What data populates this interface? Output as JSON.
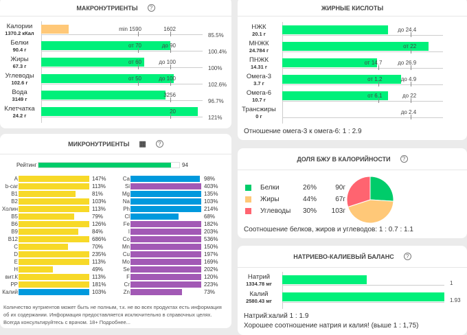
{
  "colors": {
    "green": "#00f07a",
    "orange": "#ffc878",
    "yellow": "#f7d928",
    "blue": "#0099dd",
    "purple": "#a259b5",
    "rating": "#00cc6a",
    "pie_green": "#00cc6a",
    "pie_orange": "#ffc878",
    "pie_red": "#ff6470"
  },
  "macro": {
    "title": "МАКРОНУТРИЕНТЫ",
    "help_icon": "question-circle-icon",
    "rows": [
      {
        "name": "Калории",
        "amount": "1370.2 кКал",
        "fill": 0.17,
        "color": "orange",
        "low": "min 1590",
        "high": "1602",
        "pct": "85.5%"
      },
      {
        "name": "Белки",
        "amount": "90.4 г",
        "fill": 0.8,
        "color": "green",
        "low": "от 70",
        "high": "до 90",
        "pct": "100.4%"
      },
      {
        "name": "Жиры",
        "amount": "67.3 г",
        "fill": 0.64,
        "color": "green",
        "low": "от 60",
        "high": "до 100",
        "pct": "100%"
      },
      {
        "name": "Углеводы",
        "amount": "102.6 г",
        "fill": 0.82,
        "color": "green",
        "low": "от 50",
        "high": "до 100",
        "pct": "102.6%"
      },
      {
        "name": "Вода",
        "amount": "3149 г",
        "fill": 0.77,
        "color": "green",
        "low": "",
        "high": "3256",
        "pct": "96.7%"
      },
      {
        "name": "Клетчатка",
        "amount": "24.2 г",
        "fill": 0.97,
        "color": "green",
        "low": "",
        "high": "20",
        "pct": "121%"
      }
    ]
  },
  "micro": {
    "title": "МИКРОНУТРИЕНТЫ",
    "table_icon": "table-icon",
    "help_icon": "question-circle-icon",
    "rating_label": "Рейтинг",
    "rating": 94,
    "left": [
      [
        "A",
        147,
        "yellow"
      ],
      [
        "b-car",
        113,
        "yellow"
      ],
      [
        "B1",
        81,
        "yellow"
      ],
      [
        "B2",
        103,
        "yellow"
      ],
      [
        "Холин",
        113,
        "yellow"
      ],
      [
        "B5",
        79,
        "yellow"
      ],
      [
        "B6",
        126,
        "yellow"
      ],
      [
        "B9",
        84,
        "yellow"
      ],
      [
        "B12",
        686,
        "yellow"
      ],
      [
        "C",
        70,
        "yellow"
      ],
      [
        "D",
        235,
        "yellow"
      ],
      [
        "E",
        113,
        "yellow"
      ],
      [
        "H",
        49,
        "yellow"
      ],
      [
        "вит.К",
        113,
        "yellow"
      ],
      [
        "PP",
        181,
        "yellow"
      ],
      [
        "Калий",
        103,
        "blue"
      ]
    ],
    "right": [
      [
        "Ca",
        98,
        "blue"
      ],
      [
        "Si",
        403,
        "purple"
      ],
      [
        "Mg",
        135,
        "blue"
      ],
      [
        "Na",
        103,
        "blue"
      ],
      [
        "Ph",
        214,
        "blue"
      ],
      [
        "Cl",
        68,
        "blue"
      ],
      [
        "Fe",
        182,
        "purple"
      ],
      [
        "I",
        203,
        "purple"
      ],
      [
        "Co",
        536,
        "purple"
      ],
      [
        "Mn",
        150,
        "purple"
      ],
      [
        "Cu",
        197,
        "purple"
      ],
      [
        "Mo",
        169,
        "purple"
      ],
      [
        "Se",
        202,
        "purple"
      ],
      [
        "F",
        120,
        "purple"
      ],
      [
        "Cr",
        223,
        "purple"
      ],
      [
        "Zn",
        73,
        "purple"
      ]
    ],
    "disclaimer": "Количество нутриентов может быть не полным, т.к. не во всех продуктах есть информация об их содержании. Информация предоставляется исключительно в справочных целях. Всегда консультируйтесь с врачом. 18+ Подробнее..."
  },
  "fatty": {
    "title": "ЖИРНЫЕ КИСЛОТЫ",
    "rows": [
      {
        "name": "НЖК",
        "amount": "20.1 г",
        "fill": 0.66,
        "low": "",
        "high": "до 24.4"
      },
      {
        "name": "МНЖК",
        "amount": "24.784 г",
        "fill": 0.91,
        "low": "",
        "high": "от 22"
      },
      {
        "name": "ПНЖК",
        "amount": "14.31 г",
        "fill": 0.59,
        "low": "от 14.7",
        "high": "до 26.9"
      },
      {
        "name": "Омега-3",
        "amount": "3.7 г",
        "fill": 0.74,
        "low": "от 1.2",
        "high": "до 4.9"
      },
      {
        "name": "Омега-6",
        "amount": "10.7 г",
        "fill": 0.66,
        "low": "от 6.1",
        "high": "до 22"
      },
      {
        "name": "Трансжиры",
        "amount": "0 г",
        "fill": 0,
        "low": "",
        "high": "до 2.4"
      }
    ],
    "ratio": "Отношение омега-3 к омега-6: 1 : 2.9"
  },
  "bju": {
    "title": "ДОЛЯ БЖУ В КАЛОРИЙНОСТИ",
    "help_icon": "question-circle-icon",
    "rows": [
      {
        "name": "Белки",
        "pct": "26%",
        "grams": "90г",
        "value": 26,
        "color": "pie_green"
      },
      {
        "name": "Жиры",
        "pct": "44%",
        "grams": "67г",
        "value": 44,
        "color": "pie_orange"
      },
      {
        "name": "Углеводы",
        "pct": "30%",
        "grams": "103г",
        "value": 30,
        "color": "pie_red"
      }
    ],
    "ratio": "Соотношение белков, жиров и углеводов: 1 : 0.7 : 1.1"
  },
  "nak": {
    "title": "НАТРИЕВО-КАЛИЕВЫЙ БАЛАНС",
    "help_icon": "question-circle-icon",
    "rows": [
      {
        "name": "Натрий",
        "amount": "1334.78 мг",
        "fill": 0.52,
        "value": "1"
      },
      {
        "name": "Калий",
        "amount": "2580.43 мг",
        "fill": 1.0,
        "value": "1.93"
      }
    ],
    "ratio": "Натрий:калий 1 : 1.9",
    "note": "Хорошее соотношение натрия и калия! (выше 1 : 1,75)"
  }
}
